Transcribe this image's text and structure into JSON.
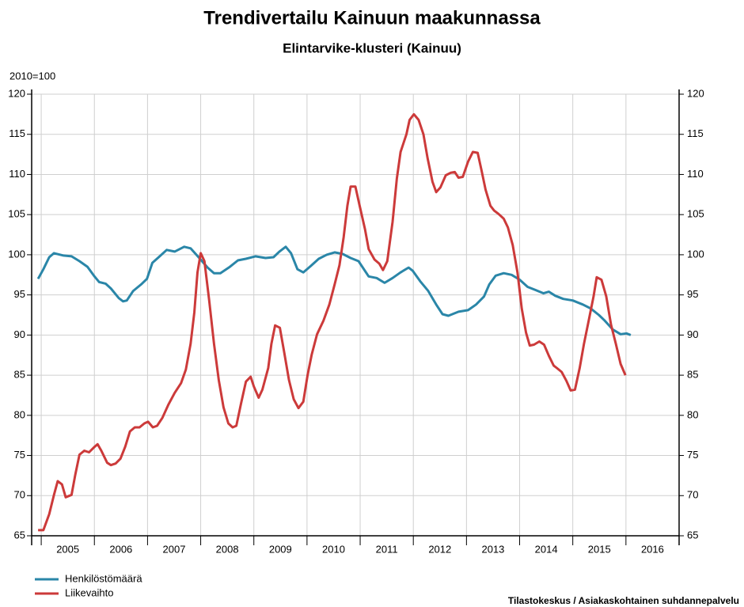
{
  "chart_data": {
    "type": "line",
    "title": "Trendivertailu Kainuun maakunnassa",
    "subtitle": "Elintarvike-klusteri (Kainuu)",
    "y_label": "2010=100",
    "source": "Tilastokeskus / Asiakaskohtainen suhdannepalvelu",
    "xlim": [
      2004.82,
      2017
    ],
    "xticks": [
      {
        "value": 2005,
        "label": "2005"
      },
      {
        "value": 2006,
        "label": "2006"
      },
      {
        "value": 2007,
        "label": "2007"
      },
      {
        "value": 2008,
        "label": "2008"
      },
      {
        "value": 2009,
        "label": "2009"
      },
      {
        "value": 2010,
        "label": "2010"
      },
      {
        "value": 2011,
        "label": "2011"
      },
      {
        "value": 2012,
        "label": "2012"
      },
      {
        "value": 2013,
        "label": "2013"
      },
      {
        "value": 2014,
        "label": "2014"
      },
      {
        "value": 2015,
        "label": "2015"
      },
      {
        "value": 2016,
        "label": "2016"
      }
    ],
    "ylim": [
      65,
      120
    ],
    "yticks": [
      65,
      70,
      75,
      80,
      85,
      90,
      95,
      100,
      105,
      110,
      115,
      120
    ],
    "grid": true,
    "legend": "bottom-left",
    "series": [
      {
        "name": "Henkilöstömäärä",
        "color": "#2a86a8",
        "x": [
          2004.94,
          2005.04,
          2005.15,
          2005.24,
          2005.42,
          2005.57,
          2005.72,
          2005.87,
          2005.99,
          2006.09,
          2006.21,
          2006.31,
          2006.46,
          2006.54,
          2006.61,
          2006.73,
          2006.88,
          2006.99,
          2007.09,
          2007.21,
          2007.36,
          2007.51,
          2007.69,
          2007.81,
          2007.96,
          2008.13,
          2008.25,
          2008.37,
          2008.55,
          2008.7,
          2008.85,
          2009.03,
          2009.22,
          2009.37,
          2009.48,
          2009.6,
          2009.7,
          2009.82,
          2009.93,
          2010.07,
          2010.22,
          2010.37,
          2010.52,
          2010.67,
          2010.82,
          2010.97,
          2011.16,
          2011.31,
          2011.46,
          2011.61,
          2011.76,
          2011.91,
          2011.99,
          2012.13,
          2012.28,
          2012.43,
          2012.55,
          2012.66,
          2012.85,
          2013.03,
          2013.18,
          2013.33,
          2013.43,
          2013.55,
          2013.7,
          2013.85,
          2014.0,
          2014.15,
          2014.3,
          2014.45,
          2014.55,
          2014.67,
          2014.82,
          2015.0,
          2015.19,
          2015.34,
          2015.49,
          2015.6,
          2015.75,
          2015.9,
          2016.01,
          2016.09
        ],
        "values": [
          97.0,
          98.2,
          99.7,
          100.2,
          99.9,
          99.8,
          99.2,
          98.5,
          97.4,
          96.6,
          96.4,
          95.8,
          94.6,
          94.2,
          94.3,
          95.5,
          96.3,
          97.0,
          99.0,
          99.7,
          100.6,
          100.4,
          101.0,
          100.8,
          99.7,
          98.4,
          97.7,
          97.7,
          98.5,
          99.3,
          99.5,
          99.8,
          99.6,
          99.7,
          100.4,
          101.0,
          100.2,
          98.2,
          97.8,
          98.6,
          99.5,
          100.0,
          100.3,
          100.1,
          99.6,
          99.2,
          97.3,
          97.1,
          96.5,
          97.1,
          97.8,
          98.4,
          98.0,
          96.7,
          95.5,
          93.8,
          92.6,
          92.4,
          92.9,
          93.1,
          93.8,
          94.8,
          96.3,
          97.4,
          97.7,
          97.5,
          96.9,
          96.0,
          95.6,
          95.2,
          95.4,
          94.9,
          94.5,
          94.3,
          93.8,
          93.3,
          92.5,
          91.8,
          90.7,
          90.1,
          90.2,
          90.0
        ]
      },
      {
        "name": "Liikevaihto",
        "color": "#cc3a3a",
        "x": [
          2004.94,
          2005.04,
          2005.15,
          2005.24,
          2005.31,
          2005.39,
          2005.46,
          2005.57,
          2005.64,
          2005.72,
          2005.81,
          2005.9,
          2005.99,
          2006.06,
          2006.13,
          2006.24,
          2006.31,
          2006.4,
          2006.49,
          2006.58,
          2006.67,
          2006.76,
          2006.85,
          2006.94,
          2007.01,
          2007.1,
          2007.18,
          2007.28,
          2007.39,
          2007.51,
          2007.63,
          2007.72,
          2007.81,
          2007.88,
          2007.94,
          2008.0,
          2008.07,
          2008.16,
          2008.25,
          2008.34,
          2008.43,
          2008.52,
          2008.6,
          2008.67,
          2008.76,
          2008.85,
          2008.94,
          2009.0,
          2009.09,
          2009.16,
          2009.27,
          2009.33,
          2009.4,
          2009.49,
          2009.57,
          2009.66,
          2009.75,
          2009.84,
          2009.93,
          2010.01,
          2010.09,
          2010.19,
          2010.31,
          2010.42,
          2010.52,
          2010.61,
          2010.69,
          2010.76,
          2010.82,
          2010.91,
          2010.99,
          2011.09,
          2011.16,
          2011.27,
          2011.36,
          2011.43,
          2011.51,
          2011.61,
          2011.69,
          2011.76,
          2011.87,
          2011.93,
          2012.01,
          2012.1,
          2012.19,
          2012.27,
          2012.36,
          2012.43,
          2012.51,
          2012.61,
          2012.7,
          2012.78,
          2012.85,
          2012.93,
          2013.03,
          2013.12,
          2013.21,
          2013.28,
          2013.36,
          2013.45,
          2013.52,
          2013.6,
          2013.7,
          2013.78,
          2013.87,
          2013.96,
          2014.04,
          2014.12,
          2014.19,
          2014.27,
          2014.37,
          2014.46,
          2014.55,
          2014.64,
          2014.7,
          2014.79,
          2014.88,
          2014.96,
          2015.04,
          2015.13,
          2015.21,
          2015.3,
          2015.39,
          2015.45,
          2015.54,
          2015.63,
          2015.72,
          2015.81,
          2015.9,
          2015.99
        ],
        "values": [
          65.7,
          65.7,
          67.7,
          70.1,
          71.8,
          71.4,
          69.8,
          70.1,
          72.6,
          75.1,
          75.6,
          75.4,
          76.0,
          76.4,
          75.6,
          74.1,
          73.8,
          74.0,
          74.6,
          76.1,
          78.0,
          78.5,
          78.5,
          79.0,
          79.2,
          78.5,
          78.7,
          79.7,
          81.3,
          82.8,
          84.0,
          85.7,
          88.9,
          92.8,
          97.8,
          100.2,
          99.2,
          94.3,
          88.9,
          84.4,
          81.0,
          79.0,
          78.5,
          78.7,
          81.5,
          84.2,
          84.8,
          83.6,
          82.2,
          83.2,
          85.9,
          88.9,
          91.2,
          90.9,
          87.9,
          84.4,
          82.0,
          80.9,
          81.7,
          85.0,
          87.6,
          90.1,
          91.8,
          93.8,
          96.3,
          98.7,
          102.2,
          106.1,
          108.5,
          108.5,
          106.1,
          103.2,
          100.7,
          99.4,
          98.9,
          98.1,
          99.2,
          104.1,
          109.5,
          112.8,
          115.0,
          116.8,
          117.5,
          116.8,
          115.0,
          112.0,
          109.1,
          107.8,
          108.4,
          109.9,
          110.2,
          110.3,
          109.6,
          109.7,
          111.6,
          112.8,
          112.7,
          110.6,
          108.1,
          106.1,
          105.5,
          105.1,
          104.5,
          103.4,
          101.2,
          97.8,
          93.3,
          90.3,
          88.7,
          88.8,
          89.2,
          88.8,
          87.4,
          86.2,
          85.9,
          85.4,
          84.3,
          83.1,
          83.2,
          85.9,
          88.9,
          91.8,
          94.8,
          97.2,
          96.9,
          94.8,
          91.3,
          88.9,
          86.4,
          85.0
        ]
      }
    ]
  }
}
